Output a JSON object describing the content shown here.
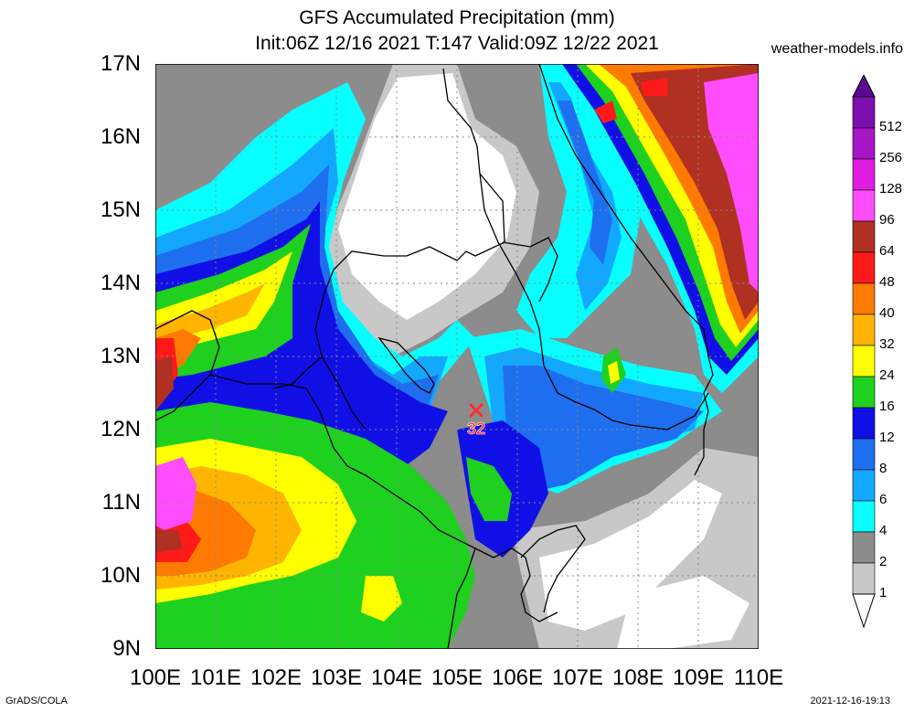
{
  "header": {
    "title": "GFS Accumulated Precipitation (mm)",
    "subtitle": "Init:06Z 12/16 2021 T:147 Valid:09Z 12/22 2021",
    "site": "weather-models.info"
  },
  "axes": {
    "lat_labels": [
      "17N",
      "16N",
      "15N",
      "14N",
      "13N",
      "12N",
      "11N",
      "10N",
      "9N"
    ],
    "lon_labels": [
      "100E",
      "101E",
      "102E",
      "103E",
      "104E",
      "105E",
      "106E",
      "107E",
      "108E",
      "109E",
      "110E"
    ]
  },
  "marker": {
    "label": "32",
    "color": "#ff3030"
  },
  "colorbar": {
    "levels": [
      "512",
      "256",
      "128",
      "96",
      "64",
      "48",
      "40",
      "32",
      "24",
      "16",
      "12",
      "8",
      "6",
      "4",
      "2",
      "1"
    ],
    "colors": [
      "#7c0fae",
      "#a616c6",
      "#e01de0",
      "#ff4cff",
      "#b03022",
      "#ff1a1a",
      "#ff7a00",
      "#ffb400",
      "#ffff00",
      "#1ed11e",
      "#1010e6",
      "#1e6ef0",
      "#12a8ff",
      "#06ffff",
      "#8c8c8c",
      "#c8c8c8"
    ]
  },
  "footer": {
    "left": "GrADS/COLA",
    "right": "2021-12-16-19:13"
  }
}
